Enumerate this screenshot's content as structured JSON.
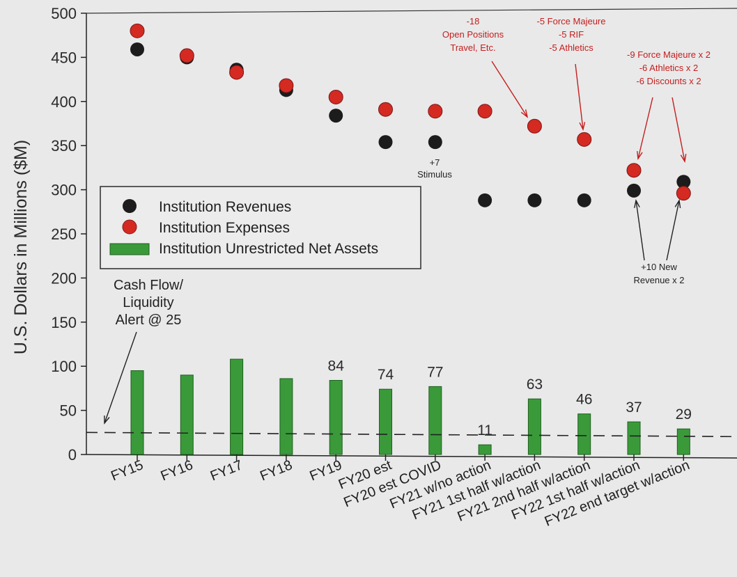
{
  "chart_data": {
    "type": "bar+scatter",
    "ylabel": "U.S. Dollars in Millions ($M)",
    "ylim": [
      0,
      500
    ],
    "yticks": [
      0,
      50,
      100,
      150,
      200,
      250,
      300,
      350,
      400,
      450,
      500
    ],
    "categories": [
      "FY15",
      "FY16",
      "FY17",
      "FY18",
      "FY19",
      "FY20 est",
      "FY20 est COVID",
      "FY21 w/no action",
      "FY21 1st half w/action",
      "FY21 2nd half w/action",
      "FY22 1st half w/action",
      "FY22 end target w/action"
    ],
    "series": [
      {
        "name": "Institution Revenues",
        "kind": "scatter",
        "color": "#1c1c1c",
        "values": [
          459,
          450,
          436,
          413,
          384,
          354,
          354,
          288,
          288,
          288,
          299,
          309
        ]
      },
      {
        "name": "Institution Expenses",
        "kind": "scatter",
        "color": "#d42a22",
        "values": [
          480,
          452,
          433,
          418,
          405,
          391,
          389,
          389,
          372,
          357,
          322,
          296
        ]
      },
      {
        "name": "Institution Unrestricted Net Assets",
        "kind": "bar",
        "color": "#3a9a3a",
        "values": [
          95,
          90,
          108,
          86,
          84,
          74,
          77,
          11,
          63,
          46,
          37,
          29
        ],
        "data_labels": [
          "",
          "",
          "",
          "",
          "84",
          "74",
          "77",
          "11",
          "63",
          "46",
          "37",
          "29"
        ]
      }
    ],
    "reference_line": {
      "value": 25,
      "style": "dashed"
    },
    "legend": {
      "position": "center-left"
    },
    "annotations": {
      "liquidity": [
        "Cash Flow/",
        "Liquidity",
        "Alert @ 25"
      ],
      "stimulus": [
        "+7",
        "Stimulus"
      ],
      "open_positions": [
        "-18",
        "Open Positions",
        "Travel, Etc."
      ],
      "force_majeure_1": [
        "-5 Force Majeure",
        "-5 RIF",
        "-5 Athletics"
      ],
      "force_majeure_2": [
        "-9 Force Majeure x 2",
        "-6 Athletics x 2",
        "-6 Discounts x 2"
      ],
      "new_revenue": [
        "+10 New",
        "Revenue x 2"
      ]
    }
  }
}
